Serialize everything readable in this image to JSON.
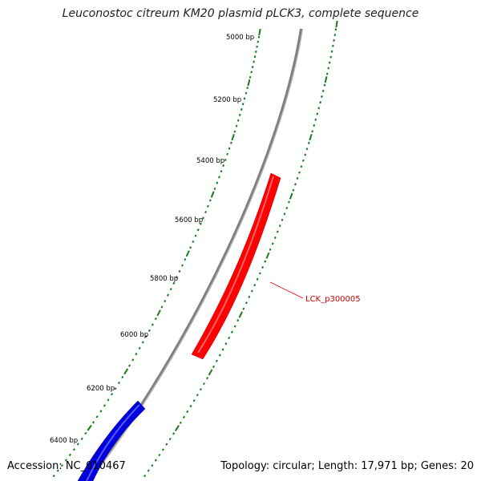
{
  "title": "Leuconostoc citreum KM20 plasmid pLCK3, complete sequence",
  "footer": {
    "accession": "Accession: NC_010467",
    "summary": "Topology: circular; Length: 17,971 bp; Genes: 20"
  },
  "ruler": {
    "labels": [
      "5000 bp",
      "5200 bp",
      "5400 bp",
      "5600 bp",
      "5800 bp",
      "6000 bp",
      "6200 bp",
      "6400 bp"
    ],
    "color": "#1a7a1a"
  },
  "backbone_color": "#808080",
  "genes": [
    {
      "name": "LCK_p300005",
      "color": "#ff0000",
      "strand": "reverse"
    },
    {
      "name": "",
      "color": "#0000dd",
      "strand": "forward"
    }
  ]
}
